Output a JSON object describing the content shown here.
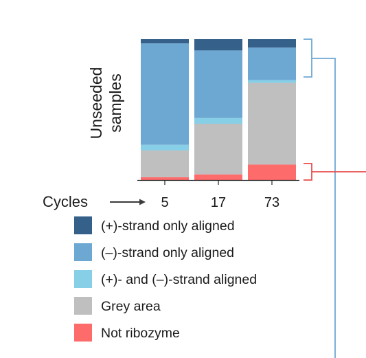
{
  "chart_data": {
    "type": "bar",
    "stacked": true,
    "normalized": true,
    "ylabel": "Unseeded samples",
    "xlabel": "Cycles",
    "categories": [
      "5",
      "17",
      "73"
    ],
    "series": [
      {
        "name": "Not ribozyme",
        "color": "#fd6b6b",
        "values": [
          0.02,
          0.04,
          0.11
        ]
      },
      {
        "name": "Grey area",
        "color": "#bfbfbf",
        "values": [
          0.19,
          0.36,
          0.58
        ]
      },
      {
        "name": "(+)- and (–)-strand aligned",
        "color": "#87cfe7",
        "values": [
          0.04,
          0.04,
          0.02
        ]
      },
      {
        "name": "(–)-strand only aligned",
        "color": "#6da8d2",
        "values": [
          0.72,
          0.48,
          0.23
        ]
      },
      {
        "name": "(+)-strand only aligned",
        "color": "#34608a",
        "values": [
          0.03,
          0.08,
          0.06
        ]
      }
    ],
    "legend_order": [
      "(+)-strand only aligned",
      "(–)-strand only aligned",
      "(+)- and (–)-strand aligned",
      "Grey area",
      "Not ribozyme"
    ],
    "grid": false,
    "legend_position": "bottom",
    "bracket_colors": {
      "upper": "#6da8d2",
      "lower": "#e84c4c"
    }
  }
}
